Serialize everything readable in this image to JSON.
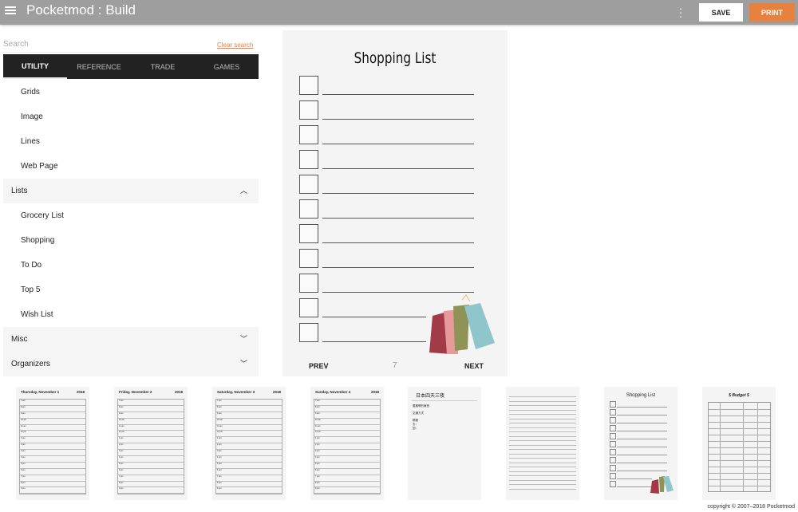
{
  "header": {
    "title": "Pocketmod : Build",
    "save_label": "SAVE",
    "print_label": "PRINT",
    "accent": "#e8803e",
    "bar_color": "#9e9e9e"
  },
  "sidebar": {
    "search_placeholder": "Search",
    "clear_search": "Clear search",
    "tabs": [
      {
        "label": "UTILITY",
        "active": true
      },
      {
        "label": "REFERENCE"
      },
      {
        "label": "TRADE"
      },
      {
        "label": "GAMES"
      }
    ],
    "utility_items": [
      "Grids",
      "Image",
      "Lines",
      "Web Page"
    ],
    "sections": [
      {
        "label": "Lists",
        "expanded": true,
        "items": [
          "Grocery List",
          "Shopping",
          "To Do",
          "Top 5",
          "Wish List"
        ]
      },
      {
        "label": "Misc",
        "expanded": false
      },
      {
        "label": "Organizers",
        "expanded": false
      }
    ]
  },
  "preview": {
    "title": "Shopping List",
    "prev": "PREV",
    "next": "NEXT",
    "page_number": "7"
  },
  "thumbnails": [
    {
      "type": "day",
      "day": "Thursday, November 1",
      "year": "2018"
    },
    {
      "type": "day",
      "day": "Friday, November 2",
      "year": "2018"
    },
    {
      "type": "day",
      "day": "Saturday, November 3",
      "year": "2018"
    },
    {
      "type": "day",
      "day": "Sunday, November 4",
      "year": "2018"
    },
    {
      "type": "text",
      "title": "日本四天三夜",
      "lines": [
        "要攜帶的東西",
        "交通方式",
        "積極",
        "去：",
        "回："
      ]
    },
    {
      "type": "lines"
    },
    {
      "type": "shopping",
      "title": "Shopping List"
    },
    {
      "type": "budget",
      "title": "$ Budget $"
    }
  ],
  "hours": [
    "7 am",
    "8 am",
    "9 am",
    "10 am",
    "11 am",
    "12 pm",
    "1 pm",
    "2 pm",
    "3 pm",
    "4 pm",
    "5 pm",
    "6 pm",
    "7 pm",
    "8 pm",
    "9 pm"
  ],
  "footer": {
    "copyright": "copyright © 2007–2018 Pocketmod"
  }
}
